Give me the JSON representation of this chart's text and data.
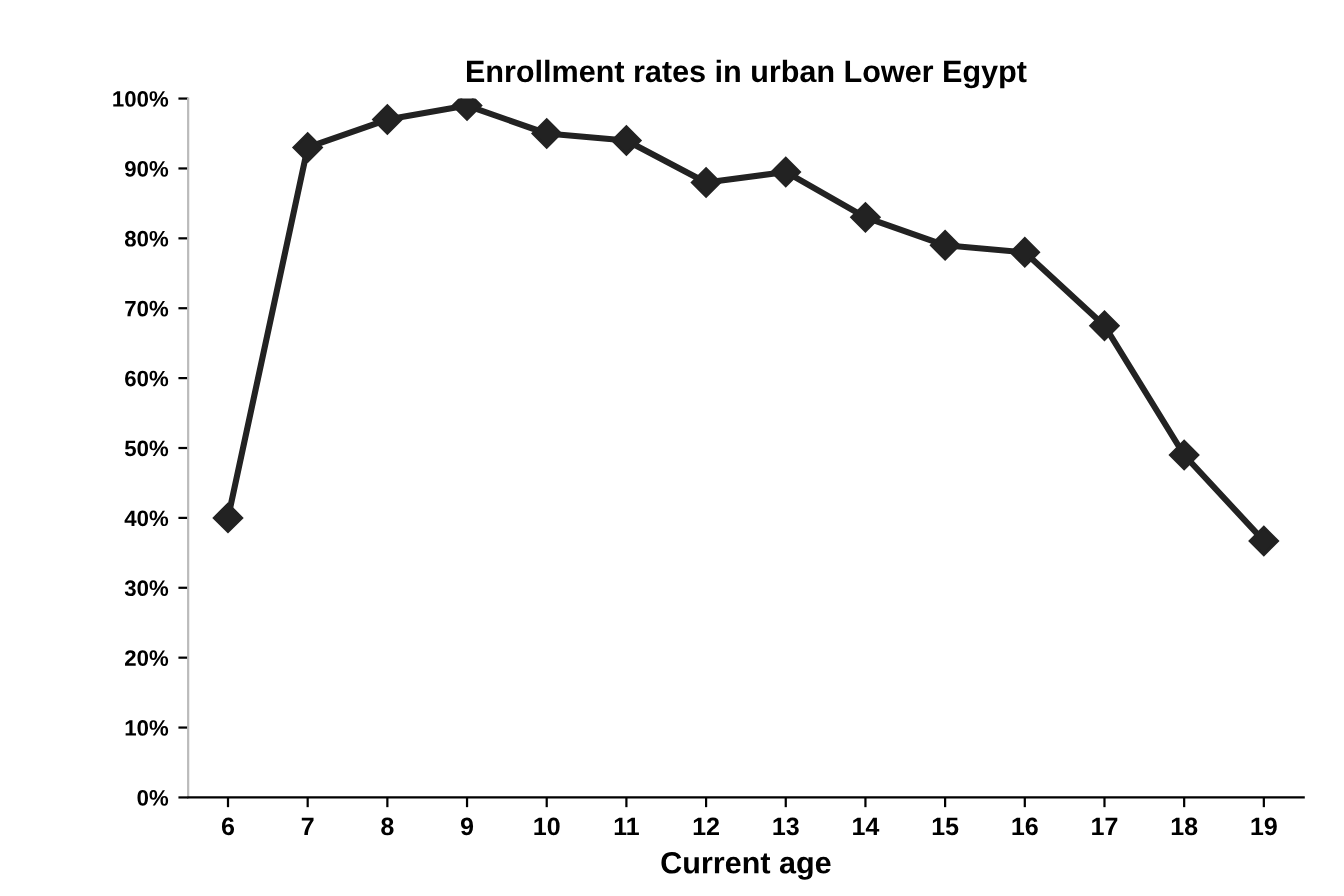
{
  "chart_data": {
    "type": "line",
    "title": "Enrollment rates in urban Lower Egypt",
    "xlabel": "Current age",
    "categories": [
      "6",
      "7",
      "8",
      "9",
      "10",
      "11",
      "12",
      "13",
      "14",
      "15",
      "16",
      "17",
      "18",
      "19"
    ],
    "series": [
      {
        "color": "#222222",
        "values": [
          40,
          93,
          97,
          99,
          95,
          94,
          88,
          89.5,
          83,
          79,
          78,
          67.5,
          49,
          36.7
        ]
      }
    ],
    "ylim": [
      0,
      100
    ],
    "yticks": [
      {
        "value": 0,
        "label": "0%"
      },
      {
        "value": 10,
        "label": "10%"
      },
      {
        "value": 20,
        "label": "20%"
      },
      {
        "value": 30,
        "label": "30%"
      },
      {
        "value": 40,
        "label": "40%"
      },
      {
        "value": 50,
        "label": "50%"
      },
      {
        "value": 60,
        "label": "60%"
      },
      {
        "value": 70,
        "label": "70%"
      },
      {
        "value": 80,
        "label": "80%"
      },
      {
        "value": 90,
        "label": "90%"
      },
      {
        "value": 100,
        "label": "100%"
      }
    ],
    "grid": false,
    "legend": false,
    "marker": "diamond",
    "line_style": "solid"
  }
}
